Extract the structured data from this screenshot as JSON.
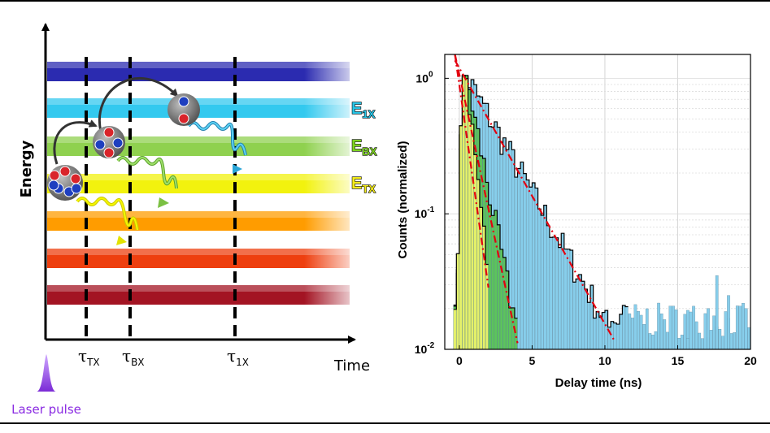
{
  "diagram": {
    "y_axis_label": "Energy",
    "x_axis_label": "Time",
    "laser_label": "Laser pulse",
    "tau_labels": [
      {
        "symbol": "τ",
        "sub": "TX"
      },
      {
        "symbol": "τ",
        "sub": "BX"
      },
      {
        "symbol": "τ",
        "sub": "1X"
      }
    ],
    "level_labels": [
      {
        "main": "E",
        "sub": "1X",
        "color": "#27c4e6"
      },
      {
        "main": "E",
        "sub": "BX",
        "color": "#7ed321"
      },
      {
        "main": "E",
        "sub": "TX",
        "color": "#f4ec1b"
      }
    ],
    "band_colors": [
      "#2b2bb0",
      "#33c9ef",
      "#8fd14f",
      "#f2f20e",
      "#ff9c00",
      "#ee3f0f",
      "#a31423"
    ],
    "laser_color": "#7b2bd6"
  },
  "chart_data": {
    "type": "bar",
    "title": "",
    "xlabel": "Delay time (ns)",
    "ylabel": "Counts (normalized)",
    "xlim": [
      -1,
      20
    ],
    "ylim": [
      0.01,
      1.5
    ],
    "yscale": "log",
    "x_ticks": [
      "0",
      "5",
      "10",
      "15",
      "20"
    ],
    "y_ticks": [
      {
        "base": "10",
        "exp": "0"
      },
      {
        "base": "10",
        "exp": "-1"
      },
      {
        "base": "10",
        "exp": "-2"
      }
    ],
    "grid": true,
    "bin_width_ns": 0.2,
    "series": [
      {
        "color": "#87ceeb",
        "fit_tau_ns": 2.3,
        "cutoff_ns": 20
      },
      {
        "color": "#5cc45c",
        "fit_tau_ns": 0.8,
        "cutoff_ns": 4
      },
      {
        "color": "#e4f06a",
        "fit_tau_ns": 0.45,
        "cutoff_ns": 2
      }
    ],
    "fit_line_color": "#e3000f"
  }
}
